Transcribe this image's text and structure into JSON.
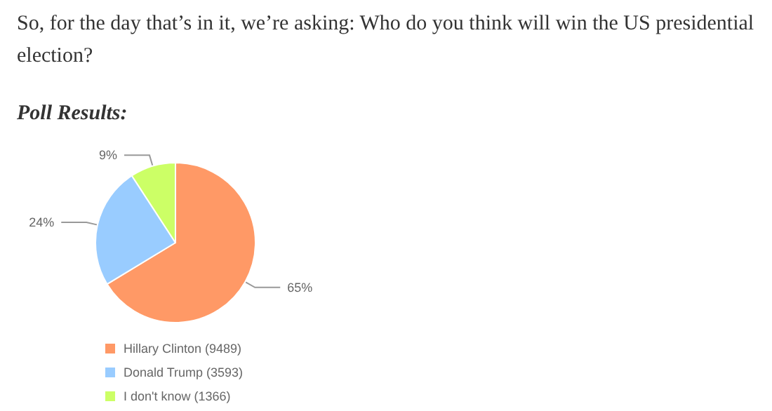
{
  "chart_data": {
    "type": "pie",
    "title": "So, for the day that’s in it, we’re asking: Who do you think will win the US presidential election?",
    "subtitle": "Poll Results:",
    "categories": [
      "Hillary Clinton (9489)",
      "Donald Trump (3593)",
      "I don't know (1366)"
    ],
    "values": [
      65,
      24,
      9
    ],
    "value_labels": [
      "65%",
      "24%",
      "9%"
    ],
    "colors": [
      "#ff9966",
      "#99ccff",
      "#ccff66"
    ],
    "legend": "bottom"
  }
}
